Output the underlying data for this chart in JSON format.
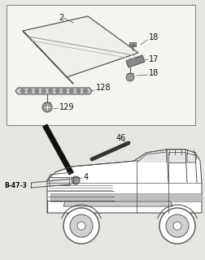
{
  "bg_color": "#e8e6e2",
  "box_color": "#f5f4f0",
  "line_color": "#555555",
  "dark_line": "#111111",
  "gray_fill": "#999999",
  "light_gray": "#cccccc"
}
